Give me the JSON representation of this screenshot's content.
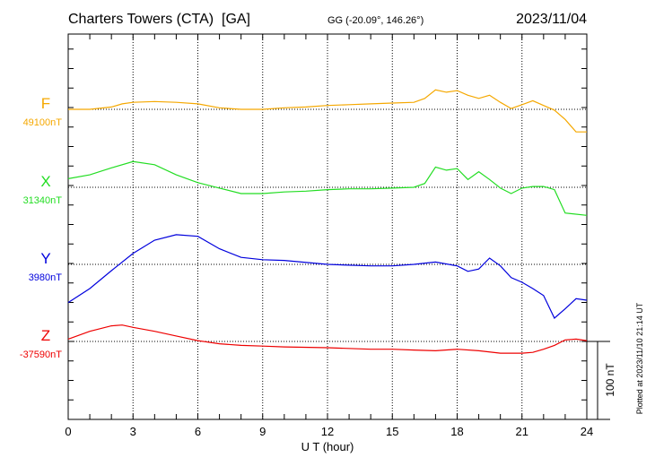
{
  "header": {
    "title": "Charters Towers (CTA)  [GA]",
    "coords": "GG (-20.09°, 146.26°)",
    "date": "2023/11/04"
  },
  "footer": {
    "plotted": "Plotted at 2023/11/10 21:14 UT",
    "scale_label": "100 nT"
  },
  "chart_data": {
    "type": "line",
    "xlabel": "U T (hour)",
    "xlim": [
      0,
      24
    ],
    "xticks": [
      "0",
      "3",
      "6",
      "9",
      "12",
      "15",
      "18",
      "21",
      "24"
    ],
    "scale_nT": 100,
    "series": [
      {
        "name": "F",
        "baseline": "49100nT",
        "color": "#f5a800",
        "x": [
          0,
          1,
          2,
          2.5,
          3,
          4,
          5,
          6,
          7,
          8,
          9,
          10,
          11,
          12,
          13,
          14,
          15,
          16,
          16.5,
          17,
          17.5,
          18,
          18.5,
          19,
          19.5,
          20,
          20.5,
          21,
          21.5,
          22,
          22.5,
          23,
          23.5,
          24
        ],
        "values": [
          0,
          0,
          3,
          7,
          9,
          10,
          9,
          7,
          2,
          0,
          0,
          2,
          3,
          5,
          6,
          7,
          8,
          9,
          14,
          25,
          22,
          24,
          18,
          14,
          18,
          9,
          1,
          6,
          11,
          5,
          -1,
          -13,
          -29,
          -29
        ]
      },
      {
        "name": "X",
        "baseline": "31340nT",
        "color": "#22dd22",
        "x": [
          0,
          1,
          2,
          3,
          4,
          5,
          6,
          7,
          8,
          9,
          10,
          11,
          12,
          13,
          14,
          15,
          16,
          16.5,
          17,
          17.5,
          18,
          18.5,
          19,
          19.5,
          20,
          20.5,
          21,
          21.5,
          22,
          22.5,
          23,
          24
        ],
        "values": [
          11,
          16,
          25,
          33,
          29,
          16,
          6,
          -1,
          -8,
          -8,
          -6,
          -5,
          -3,
          -2,
          -2,
          -1,
          0,
          5,
          26,
          22,
          24,
          10,
          20,
          10,
          -1,
          -8,
          -1,
          1,
          1,
          -3,
          -33,
          -36
        ]
      },
      {
        "name": "Y",
        "baseline": "3980nT",
        "color": "#0000dd",
        "x": [
          0,
          1,
          2,
          3,
          4,
          5,
          6,
          7,
          8,
          9,
          10,
          12,
          13,
          14,
          15,
          16,
          17,
          18,
          18.5,
          19,
          19.5,
          20,
          20.5,
          21,
          21.5,
          22,
          22.5,
          23,
          23.5,
          24
        ],
        "values": [
          -49,
          -31,
          -8,
          14,
          31,
          38,
          36,
          20,
          9,
          6,
          5,
          0,
          -1,
          -2,
          -2,
          0,
          3,
          -2,
          -9,
          -6,
          8,
          -2,
          -17,
          -23,
          -31,
          -40,
          -69,
          -57,
          -44,
          -46
        ]
      },
      {
        "name": "Z",
        "baseline": "-37590nT",
        "color": "#ee0000",
        "x": [
          0,
          1,
          2,
          2.5,
          3,
          4,
          5,
          6,
          7,
          8,
          9,
          10,
          12,
          14,
          15,
          16,
          17,
          18,
          19,
          20,
          21,
          21.5,
          22,
          22.5,
          23,
          23.5,
          24
        ],
        "values": [
          3,
          13,
          20,
          21,
          18,
          13,
          7,
          1,
          -3,
          -5,
          -6,
          -7,
          -8,
          -10,
          -10,
          -11,
          -12,
          -10,
          -12,
          -15,
          -15,
          -14,
          -10,
          -5,
          2,
          3,
          1
        ]
      }
    ]
  }
}
